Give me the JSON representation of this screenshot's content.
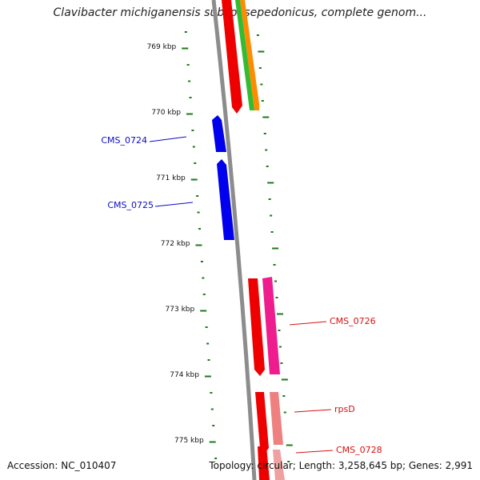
{
  "title": "Clavibacter michiganensis subsp. sepedonicus, complete genom...",
  "footer": {
    "accession": "Accession: NC_010407",
    "summary": "Topology: circular; Length: 3,258,645 bp; Genes: 2,991"
  },
  "ticks": [
    "769 kbp",
    "770 kbp",
    "771 kbp",
    "772 kbp",
    "773 kbp",
    "774 kbp",
    "775 kbp"
  ],
  "genes": [
    {
      "label": "CMS_0724",
      "color": "#0b0bc8"
    },
    {
      "label": "CMS_0725",
      "color": "#0b0bc8"
    },
    {
      "label": "CMS_0726",
      "color": "#d81010"
    },
    {
      "label": "rpsD",
      "color": "#d81010"
    },
    {
      "label": "CMS_0728",
      "color": "#d81010"
    }
  ],
  "colors": {
    "backbone": "#8c8c8c",
    "tick": "#1a7a1a",
    "blue_gene": "#0000ee",
    "red_gene": "#ee0000",
    "pink_gene": "#ee1c8c",
    "light_pink_gene": "#ee8080",
    "green_gene": "#33bb33",
    "orange_gene": "#ff8c00"
  }
}
